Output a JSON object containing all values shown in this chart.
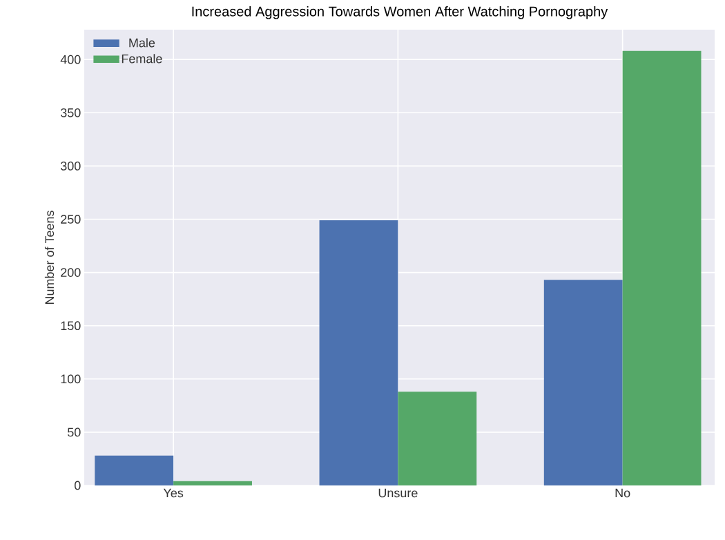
{
  "chart_data": {
    "type": "bar",
    "title": "Increased Aggression Towards Women After Watching Pornography",
    "ylabel": "Number of Teens",
    "categories": [
      "Yes",
      "Unsure",
      "No"
    ],
    "series": [
      {
        "name": "Male",
        "color": "#4c72b0",
        "values": [
          28,
          249,
          193
        ]
      },
      {
        "name": "Female",
        "color": "#55a868",
        "values": [
          4,
          88,
          408
        ]
      }
    ],
    "ylim": [
      0,
      428
    ],
    "yticks": [
      0,
      50,
      100,
      150,
      200,
      250,
      300,
      350,
      400
    ],
    "grid": true,
    "legend": "top left"
  }
}
